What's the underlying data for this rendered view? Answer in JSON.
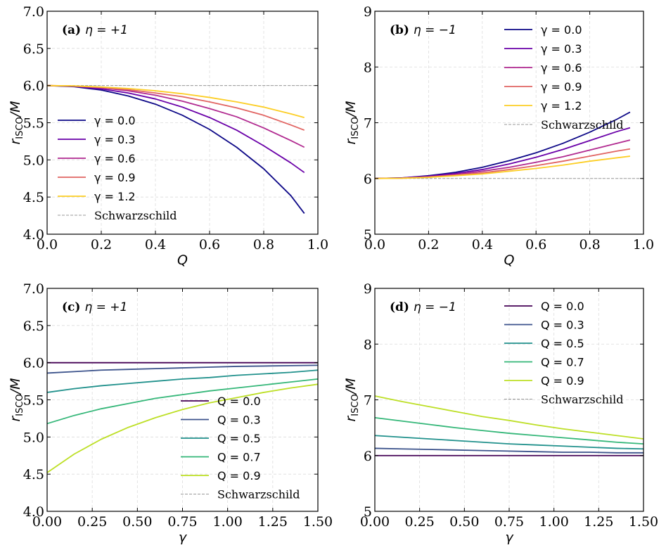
{
  "chart_data": [
    {
      "type": "line",
      "panel_label": "(a)",
      "panel_eq": "η = +1",
      "xlabel": "Q",
      "ylabel": "r_ISCO/M",
      "ylabel_main": "r",
      "ylabel_sub": "ISCO",
      "ylabel_tail": "/M",
      "xlim": [
        0.0,
        1.0
      ],
      "ylim": [
        4.0,
        7.0
      ],
      "xticks": [
        "0.0",
        "0.2",
        "0.4",
        "0.6",
        "0.8",
        "1.0"
      ],
      "xtick_values": [
        0.0,
        0.2,
        0.4,
        0.6,
        0.8,
        1.0
      ],
      "yticks": [
        "4.0",
        "4.5",
        "5.0",
        "5.5",
        "6.0",
        "6.5",
        "7.0"
      ],
      "ytick_values": [
        4.0,
        4.5,
        5.0,
        5.5,
        6.0,
        6.5,
        7.0
      ],
      "legend_position": "center-left",
      "reference": {
        "name": "Schwarzschild",
        "value": 6.0,
        "color": "#999999"
      },
      "x": [
        0.0,
        0.1,
        0.2,
        0.3,
        0.4,
        0.5,
        0.6,
        0.7,
        0.8,
        0.9,
        0.95
      ],
      "series": [
        {
          "name": "γ = 0.0",
          "color": "#0d0887",
          "values": [
            6.0,
            5.985,
            5.94,
            5.86,
            5.75,
            5.6,
            5.41,
            5.17,
            4.88,
            4.52,
            4.28
          ]
        },
        {
          "name": "γ = 0.3",
          "color": "#6a00a8",
          "values": [
            6.0,
            5.99,
            5.955,
            5.9,
            5.82,
            5.71,
            5.57,
            5.4,
            5.19,
            4.96,
            4.83
          ]
        },
        {
          "name": "γ = 0.6",
          "color": "#b12a90",
          "values": [
            6.0,
            5.992,
            5.97,
            5.93,
            5.87,
            5.79,
            5.69,
            5.58,
            5.43,
            5.26,
            5.17
          ]
        },
        {
          "name": "γ = 0.9",
          "color": "#e16462",
          "values": [
            6.0,
            5.994,
            5.975,
            5.945,
            5.9,
            5.85,
            5.78,
            5.7,
            5.6,
            5.47,
            5.4
          ]
        },
        {
          "name": "γ = 1.2",
          "color": "#fcce25",
          "values": [
            6.0,
            5.996,
            5.98,
            5.96,
            5.93,
            5.89,
            5.84,
            5.78,
            5.71,
            5.62,
            5.57
          ]
        }
      ]
    },
    {
      "type": "line",
      "panel_label": "(b)",
      "panel_eq": "η = −1",
      "xlabel": "Q",
      "ylabel": "r_ISCO/M",
      "ylabel_main": "r",
      "ylabel_sub": "ISCO",
      "ylabel_tail": "/M",
      "xlim": [
        0.0,
        1.0
      ],
      "ylim": [
        5.0,
        9.0
      ],
      "xticks": [
        "0.0",
        "0.2",
        "0.4",
        "0.6",
        "0.8",
        "1.0"
      ],
      "xtick_values": [
        0.0,
        0.2,
        0.4,
        0.6,
        0.8,
        1.0
      ],
      "yticks": [
        "5",
        "6",
        "7",
        "8",
        "9"
      ],
      "ytick_values": [
        5,
        6,
        7,
        8,
        9
      ],
      "legend_position": "top-right",
      "reference": {
        "name": "Schwarzschild",
        "value": 6.0,
        "color": "#999999"
      },
      "x": [
        0.0,
        0.1,
        0.2,
        0.3,
        0.4,
        0.5,
        0.6,
        0.7,
        0.8,
        0.9,
        0.95
      ],
      "series": [
        {
          "name": "γ = 0.0",
          "color": "#0d0887",
          "values": [
            6.0,
            6.01,
            6.05,
            6.11,
            6.2,
            6.32,
            6.46,
            6.63,
            6.83,
            7.06,
            7.19
          ]
        },
        {
          "name": "γ = 0.3",
          "color": "#6a00a8",
          "values": [
            6.0,
            6.01,
            6.04,
            6.09,
            6.16,
            6.26,
            6.38,
            6.52,
            6.68,
            6.84,
            6.91
          ]
        },
        {
          "name": "γ = 0.6",
          "color": "#b12a90",
          "values": [
            6.0,
            6.006,
            6.03,
            6.07,
            6.13,
            6.2,
            6.29,
            6.39,
            6.51,
            6.63,
            6.69
          ]
        },
        {
          "name": "γ = 0.9",
          "color": "#e16462",
          "values": [
            6.0,
            6.005,
            6.025,
            6.06,
            6.1,
            6.16,
            6.23,
            6.31,
            6.4,
            6.49,
            6.53
          ]
        },
        {
          "name": "γ = 1.2",
          "color": "#fcce25",
          "values": [
            6.0,
            6.004,
            6.02,
            6.05,
            6.08,
            6.13,
            6.18,
            6.24,
            6.31,
            6.37,
            6.4
          ]
        }
      ]
    },
    {
      "type": "line",
      "panel_label": "(c)",
      "panel_eq": "η = +1",
      "xlabel": "γ",
      "ylabel": "r_ISCO/M",
      "ylabel_main": "r",
      "ylabel_sub": "ISCO",
      "ylabel_tail": "/M",
      "xlim": [
        0.0,
        1.5
      ],
      "ylim": [
        4.0,
        7.0
      ],
      "xticks": [
        "0.00",
        "0.25",
        "0.50",
        "0.75",
        "1.00",
        "1.25",
        "1.50"
      ],
      "xtick_values": [
        0.0,
        0.25,
        0.5,
        0.75,
        1.0,
        1.25,
        1.5
      ],
      "yticks": [
        "4.0",
        "4.5",
        "5.0",
        "5.5",
        "6.0",
        "6.5",
        "7.0"
      ],
      "ytick_values": [
        4.0,
        4.5,
        5.0,
        5.5,
        6.0,
        6.5,
        7.0
      ],
      "legend_position": "lower-center",
      "reference": {
        "name": "Schwarzschild",
        "value": 6.0,
        "color": "#999999"
      },
      "x": [
        0.0,
        0.15,
        0.3,
        0.45,
        0.6,
        0.75,
        0.9,
        1.05,
        1.2,
        1.35,
        1.5
      ],
      "series": [
        {
          "name": "Q = 0.0",
          "color": "#440154",
          "values": [
            6.0,
            6.0,
            6.0,
            6.0,
            6.0,
            6.0,
            6.0,
            6.0,
            6.0,
            6.0,
            6.0
          ]
        },
        {
          "name": "Q = 0.3",
          "color": "#3b528b",
          "values": [
            5.86,
            5.88,
            5.9,
            5.91,
            5.92,
            5.93,
            5.94,
            5.95,
            5.955,
            5.96,
            5.965
          ]
        },
        {
          "name": "Q = 0.5",
          "color": "#21918c",
          "values": [
            5.6,
            5.65,
            5.69,
            5.72,
            5.75,
            5.78,
            5.8,
            5.83,
            5.85,
            5.87,
            5.9
          ]
        },
        {
          "name": "Q = 0.7",
          "color": "#35b779",
          "values": [
            5.18,
            5.29,
            5.38,
            5.45,
            5.52,
            5.57,
            5.62,
            5.66,
            5.7,
            5.74,
            5.78
          ]
        },
        {
          "name": "Q = 0.9",
          "color": "#bddf26",
          "values": [
            4.52,
            4.77,
            4.97,
            5.13,
            5.26,
            5.37,
            5.46,
            5.53,
            5.6,
            5.66,
            5.71
          ]
        }
      ]
    },
    {
      "type": "line",
      "panel_label": "(d)",
      "panel_eq": "η = −1",
      "xlabel": "γ",
      "ylabel": "r_ISCO/M",
      "ylabel_main": "r",
      "ylabel_sub": "ISCO",
      "ylabel_tail": "/M",
      "xlim": [
        0.0,
        1.5
      ],
      "ylim": [
        5.0,
        9.0
      ],
      "xticks": [
        "0.00",
        "0.25",
        "0.50",
        "0.75",
        "1.00",
        "1.25",
        "1.50"
      ],
      "xtick_values": [
        0.0,
        0.25,
        0.5,
        0.75,
        1.0,
        1.25,
        1.5
      ],
      "yticks": [
        "5",
        "6",
        "7",
        "8",
        "9"
      ],
      "ytick_values": [
        5,
        6,
        7,
        8,
        9
      ],
      "legend_position": "top-right",
      "reference": {
        "name": "Schwarzschild",
        "value": 6.0,
        "color": "#999999"
      },
      "x": [
        0.0,
        0.15,
        0.3,
        0.45,
        0.6,
        0.75,
        0.9,
        1.05,
        1.2,
        1.35,
        1.5
      ],
      "series": [
        {
          "name": "Q = 0.0",
          "color": "#440154",
          "values": [
            6.0,
            6.0,
            6.0,
            6.0,
            6.0,
            6.0,
            6.0,
            6.0,
            6.0,
            6.0,
            6.0
          ]
        },
        {
          "name": "Q = 0.3",
          "color": "#3b528b",
          "values": [
            6.13,
            6.12,
            6.11,
            6.1,
            6.09,
            6.08,
            6.07,
            6.06,
            6.06,
            6.05,
            6.05
          ]
        },
        {
          "name": "Q = 0.5",
          "color": "#21918c",
          "values": [
            6.36,
            6.33,
            6.3,
            6.27,
            6.24,
            6.21,
            6.19,
            6.17,
            6.15,
            6.13,
            6.12
          ]
        },
        {
          "name": "Q = 0.7",
          "color": "#35b779",
          "values": [
            6.68,
            6.62,
            6.56,
            6.5,
            6.45,
            6.4,
            6.36,
            6.32,
            6.28,
            6.24,
            6.21
          ]
        },
        {
          "name": "Q = 0.9",
          "color": "#bddf26",
          "values": [
            7.07,
            6.97,
            6.88,
            6.79,
            6.7,
            6.63,
            6.55,
            6.48,
            6.42,
            6.36,
            6.3
          ]
        }
      ]
    }
  ]
}
